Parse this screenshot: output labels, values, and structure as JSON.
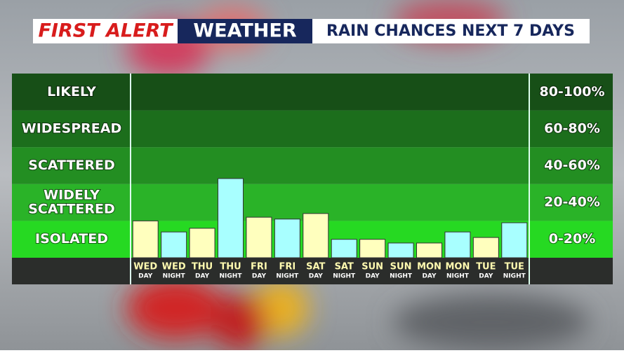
{
  "header": {
    "brand": "FIRST ALERT",
    "section": "WEATHER",
    "title": "RAIN CHANCES NEXT 7 DAYS"
  },
  "chart_data": {
    "type": "bar",
    "categories": [
      "WED",
      "WED",
      "THU",
      "THU",
      "FRI",
      "FRI",
      "SAT",
      "SAT",
      "SUN",
      "SUN",
      "MON",
      "MON",
      "TUE",
      "TUE"
    ],
    "subcategories": [
      "DAY",
      "NIGHT",
      "DAY",
      "NIGHT",
      "DAY",
      "NIGHT",
      "DAY",
      "NIGHT",
      "DAY",
      "NIGHT",
      "DAY",
      "NIGHT",
      "DAY",
      "NIGHT"
    ],
    "values": [
      20,
      14,
      16,
      43,
      22,
      21,
      24,
      10,
      10,
      8,
      8,
      14,
      11,
      19
    ],
    "colors": [
      "#ffffbe",
      "#a8ffff",
      "#ffffbe",
      "#a8ffff",
      "#ffffbe",
      "#a8ffff",
      "#ffffbe",
      "#a8ffff",
      "#ffffbe",
      "#a8ffff",
      "#ffffbe",
      "#a8ffff",
      "#ffffbe",
      "#a8ffff"
    ],
    "ylim": [
      0,
      100
    ],
    "bands": [
      {
        "label": [
          "LIKELY"
        ],
        "range": "80-100%",
        "from": 80,
        "to": 100,
        "color": "#174f17"
      },
      {
        "label": [
          "WIDESPREAD"
        ],
        "range": "60-80%",
        "from": 60,
        "to": 80,
        "color": "#1c6e1c"
      },
      {
        "label": [
          "SCATTERED"
        ],
        "range": "40-60%",
        "from": 40,
        "to": 60,
        "color": "#238e22"
      },
      {
        "label": [
          "WIDELY",
          "SCATTERED"
        ],
        "range": "20-40%",
        "from": 20,
        "to": 40,
        "color": "#2ab328"
      },
      {
        "label": [
          "ISOLATED"
        ],
        "range": "0-20%",
        "from": 0,
        "to": 20,
        "color": "#26d922"
      }
    ]
  }
}
